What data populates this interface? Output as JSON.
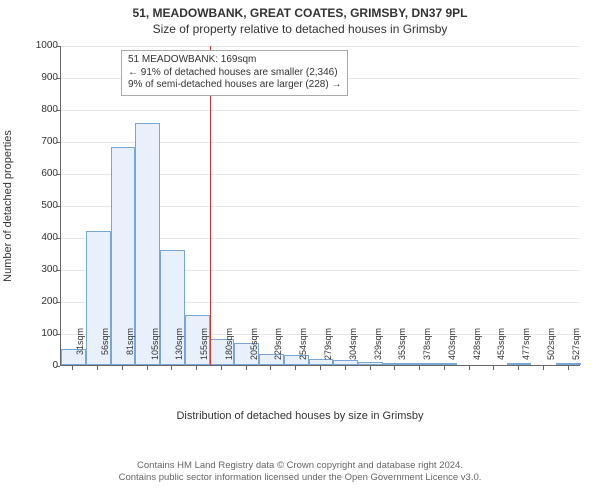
{
  "title": {
    "line1": "51, MEADOWBANK, GREAT COATES, GRIMSBY, DN37 9PL",
    "line2": "Size of property relative to detached houses in Grimsby"
  },
  "chart": {
    "type": "histogram",
    "ylabel": "Number of detached properties",
    "xlabel": "Distribution of detached houses by size in Grimsby",
    "ylim": [
      0,
      1000
    ],
    "ytick_step": 100,
    "bar_fill": "#e8f1fb",
    "bar_stroke": "#7aa6d6",
    "grid_color": "#e8e8e8",
    "axis_color": "#666666",
    "background_color": "#ffffff",
    "categories": [
      "31sqm",
      "56sqm",
      "81sqm",
      "105sqm",
      "130sqm",
      "155sqm",
      "180sqm",
      "205sqm",
      "229sqm",
      "254sqm",
      "279sqm",
      "304sqm",
      "329sqm",
      "353sqm",
      "378sqm",
      "403sqm",
      "428sqm",
      "453sqm",
      "477sqm",
      "502sqm",
      "527sqm"
    ],
    "values": [
      50,
      420,
      680,
      755,
      360,
      155,
      80,
      70,
      35,
      30,
      20,
      15,
      10,
      5,
      4,
      3,
      0,
      0,
      2,
      0,
      2
    ],
    "reference_line": {
      "x_index": 6.0,
      "color": "#d93030"
    },
    "annotation": {
      "lines": [
        "51 MEADOWBANK: 169sqm",
        "← 91% of detached houses are smaller (2,346)",
        "9% of semi-detached houses are larger (228) →"
      ],
      "border_color": "#aaaaaa"
    }
  },
  "footer": {
    "line1": "Contains HM Land Registry data © Crown copyright and database right 2024.",
    "line2": "Contains public sector information licensed under the Open Government Licence v3.0."
  },
  "fonts": {
    "title_size_pt": 12,
    "axis_label_size_pt": 11,
    "tick_size_pt": 10,
    "annotation_size_pt": 10,
    "footer_size_pt": 9.5
  }
}
